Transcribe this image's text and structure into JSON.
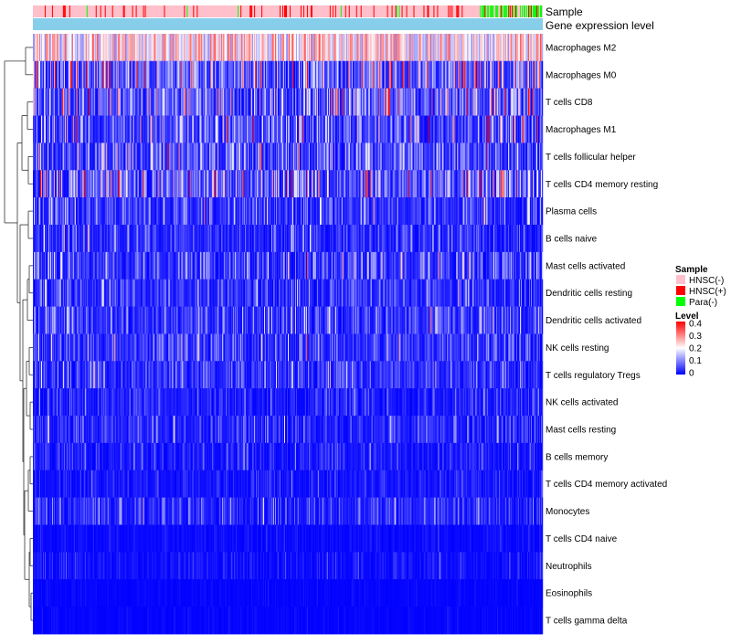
{
  "chart_data": {
    "type": "heatmap",
    "title": "",
    "n_samples": 560,
    "rows": [
      {
        "label": "Macrophages M2",
        "mean": 0.2
      },
      {
        "label": "Macrophages M0",
        "mean": 0.11
      },
      {
        "label": "T cells CD8",
        "mean": 0.1
      },
      {
        "label": "Macrophages M1",
        "mean": 0.085
      },
      {
        "label": "T cells follicular helper",
        "mean": 0.07
      },
      {
        "label": "T cells CD4 memory resting",
        "mean": 0.1
      },
      {
        "label": "Plasma cells",
        "mean": 0.05
      },
      {
        "label": "B cells naive",
        "mean": 0.04
      },
      {
        "label": "Mast cells activated",
        "mean": 0.055
      },
      {
        "label": "Dendritic cells resting",
        "mean": 0.045
      },
      {
        "label": "Dendritic cells activated",
        "mean": 0.05
      },
      {
        "label": "NK cells resting",
        "mean": 0.05
      },
      {
        "label": "T cells regulatory  Tregs",
        "mean": 0.045
      },
      {
        "label": "NK cells activated",
        "mean": 0.03
      },
      {
        "label": "Mast cells resting",
        "mean": 0.035
      },
      {
        "label": "B cells memory",
        "mean": 0.025
      },
      {
        "label": "T cells CD4 memory activated",
        "mean": 0.02
      },
      {
        "label": "Monocytes",
        "mean": 0.04
      },
      {
        "label": "T cells CD4 naive",
        "mean": 0.01
      },
      {
        "label": "Neutrophils",
        "mean": 0.015
      },
      {
        "label": "Eosinophils",
        "mean": 0.005
      },
      {
        "label": "T cells gamma delta",
        "mean": 0.005
      }
    ],
    "annotations": [
      {
        "name": "Sample",
        "type": "categorical"
      },
      {
        "name": "Gene expression level",
        "type": "continuous"
      }
    ],
    "sample_composition": {
      "HNSC(-)": 0.8,
      "HNSC(+)": 0.12,
      "Para(-)": 0.08
    },
    "legends": {
      "sample": {
        "title": "Sample",
        "items": [
          {
            "label": "HNSC(-)",
            "color": "#ffc0cb"
          },
          {
            "label": "HNSC(+)",
            "color": "#ff0000"
          },
          {
            "label": "Para(-)",
            "color": "#00ff00"
          }
        ]
      },
      "level": {
        "title": "Level",
        "range": [
          0,
          0.4
        ],
        "ticks": [
          "0.4",
          "0.3",
          "0.2",
          "0.1",
          "0"
        ],
        "colors": {
          "low": "#0000ff",
          "mid": "#ffffff",
          "high": "#ff0000"
        }
      }
    },
    "annotation_colors": {
      "gene_expression": "#87ceeb"
    },
    "clustering": "hierarchical (rows)"
  }
}
